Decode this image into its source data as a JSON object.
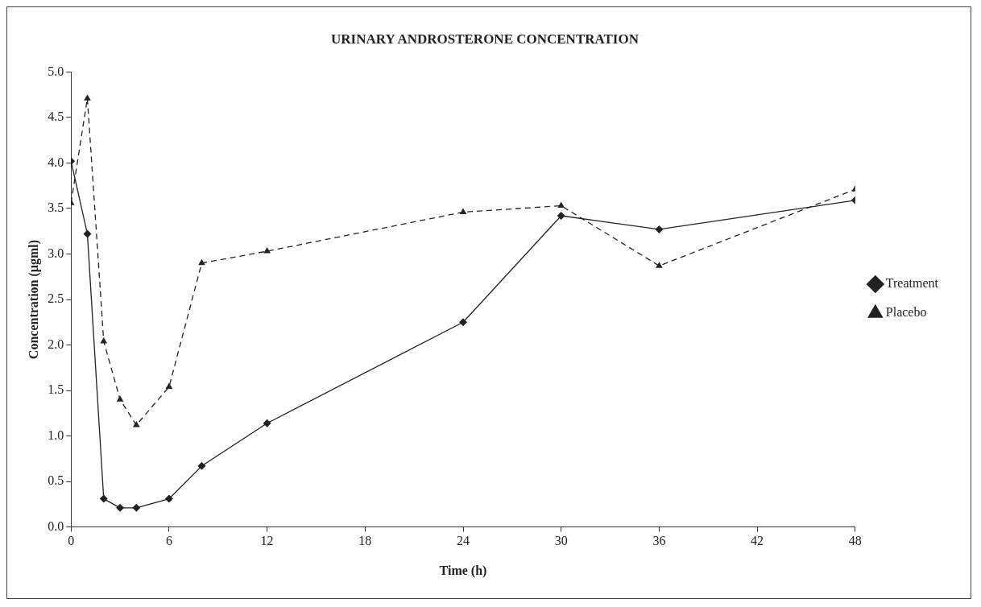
{
  "chart_data": {
    "type": "line",
    "title": "URINARY ANDROSTERONE CONCENTRATION",
    "xlabel": "Time (h)",
    "ylabel": "Concentration (µgml)",
    "x": [
      0,
      1,
      2,
      3,
      4,
      6,
      8,
      12,
      24,
      30,
      36,
      48
    ],
    "series": [
      {
        "name": "Treatment",
        "color": "#222222",
        "marker": "diamond",
        "line_style": "solid",
        "values": [
          4.02,
          3.22,
          0.31,
          0.21,
          0.21,
          0.31,
          0.67,
          1.14,
          2.25,
          3.42,
          3.27,
          3.59
        ]
      },
      {
        "name": "Placebo",
        "color": "#222222",
        "marker": "triangle",
        "line_style": "dashed",
        "values": [
          3.56,
          4.71,
          2.04,
          1.4,
          1.12,
          1.54,
          2.9,
          3.03,
          3.46,
          3.53,
          2.87,
          3.71
        ]
      }
    ],
    "xlim": [
      0,
      48
    ],
    "xticks": [
      0,
      6,
      12,
      18,
      24,
      30,
      36,
      42,
      48
    ],
    "ylim": [
      0,
      5
    ],
    "yticks": [
      {
        "value": 0,
        "label": "0.0"
      },
      {
        "value": 0.5,
        "label": "0.5"
      },
      {
        "value": 1,
        "label": "1.0"
      },
      {
        "value": 1.5,
        "label": "1.5"
      },
      {
        "value": 2,
        "label": "2.0"
      },
      {
        "value": 2.5,
        "label": "2.5"
      },
      {
        "value": 3,
        "label": "3.0"
      },
      {
        "value": 3.5,
        "label": "3.5"
      },
      {
        "value": 4,
        "label": "4.0"
      },
      {
        "value": 4.5,
        "label": "4.5"
      },
      {
        "value": 5,
        "label": "5.0"
      }
    ],
    "grid": false,
    "legend": "right"
  }
}
